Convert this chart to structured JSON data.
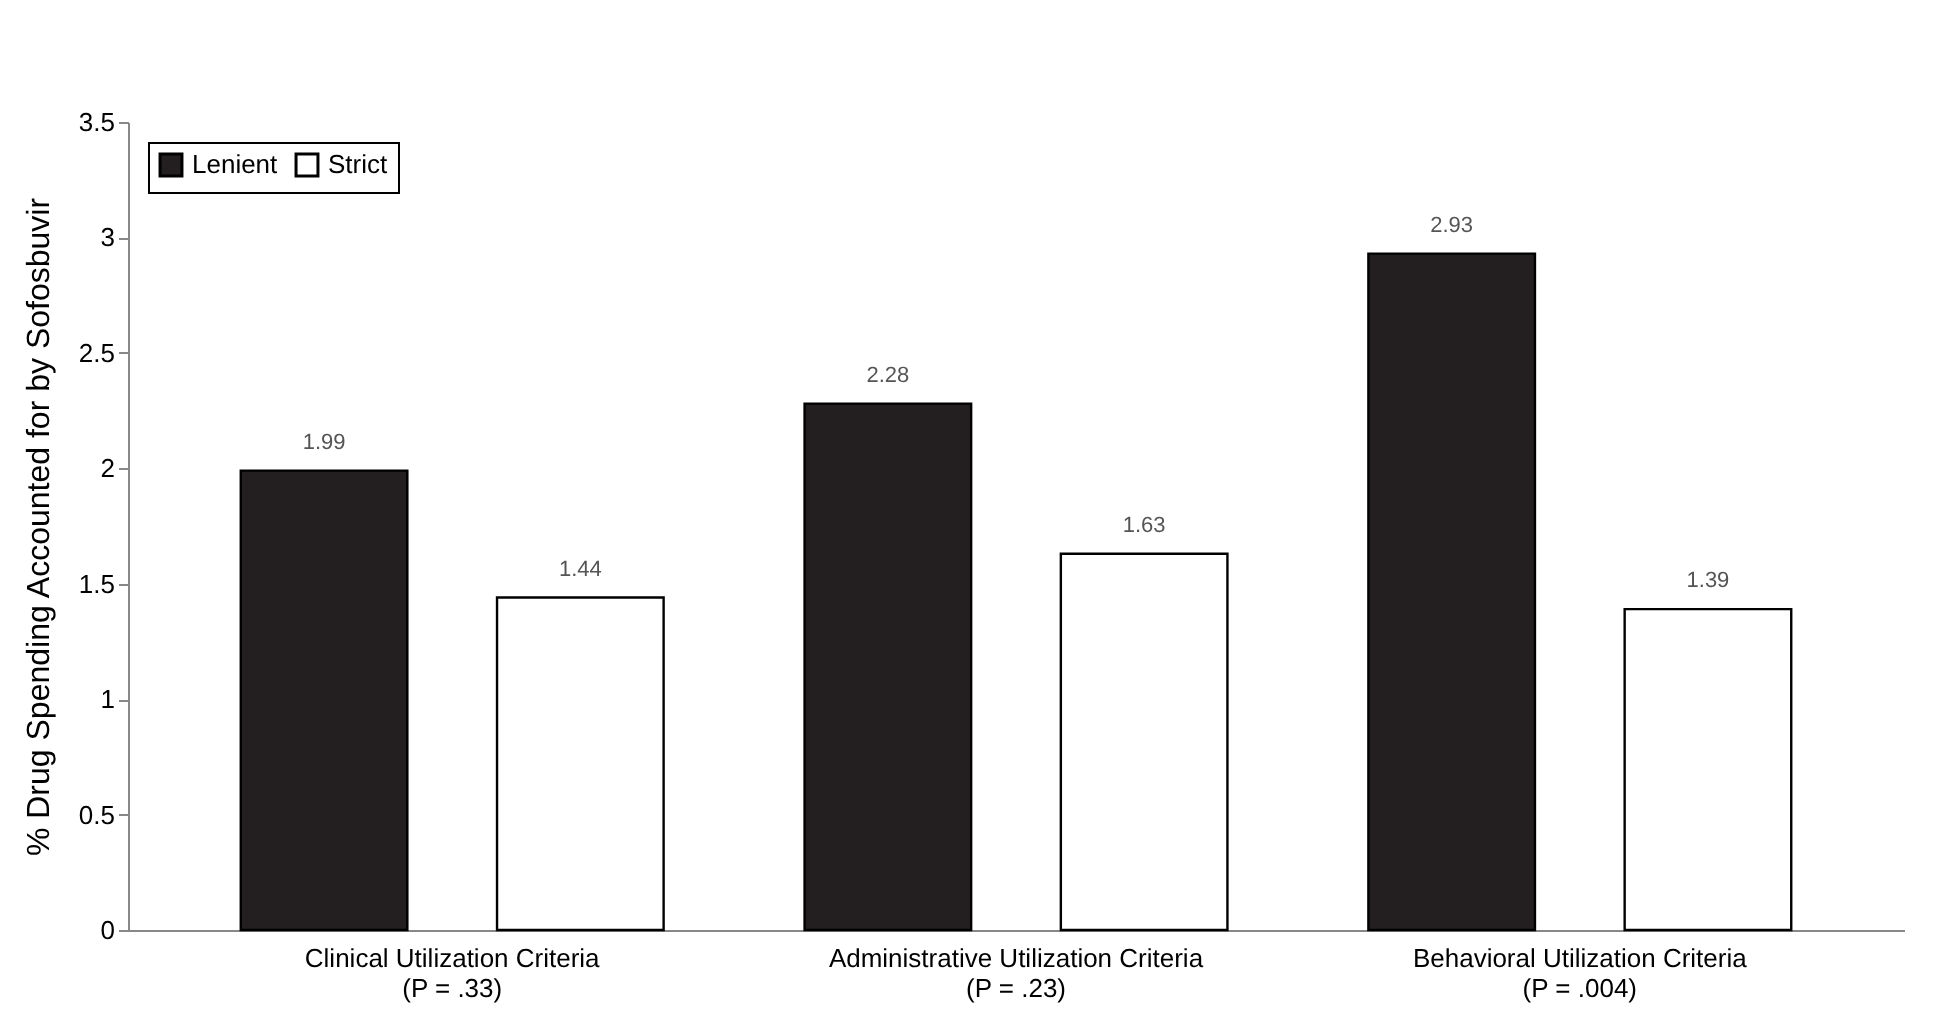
{
  "chart_data": {
    "type": "bar",
    "ylabel": "% Drug Spending Accounted for by Sofosbuvir",
    "categories": [
      "Clinical Utilization Criteria\n(P = .33)",
      "Administrative Utilization Criteria\n(P = .23)",
      "Behavioral Utilization Criteria\n(P = .004)"
    ],
    "series": [
      {
        "name": "Lenient",
        "color": "#231f20",
        "values": [
          1.99,
          2.28,
          2.93
        ]
      },
      {
        "name": "Strict",
        "color": "#ffffff",
        "values": [
          1.44,
          1.63,
          1.39
        ]
      }
    ],
    "ylim": [
      0,
      3.5
    ],
    "yticks": [
      0,
      0.5,
      1,
      1.5,
      2,
      2.5,
      3,
      3.5
    ],
    "data_labels": true,
    "grid": false,
    "legend": "top left"
  }
}
